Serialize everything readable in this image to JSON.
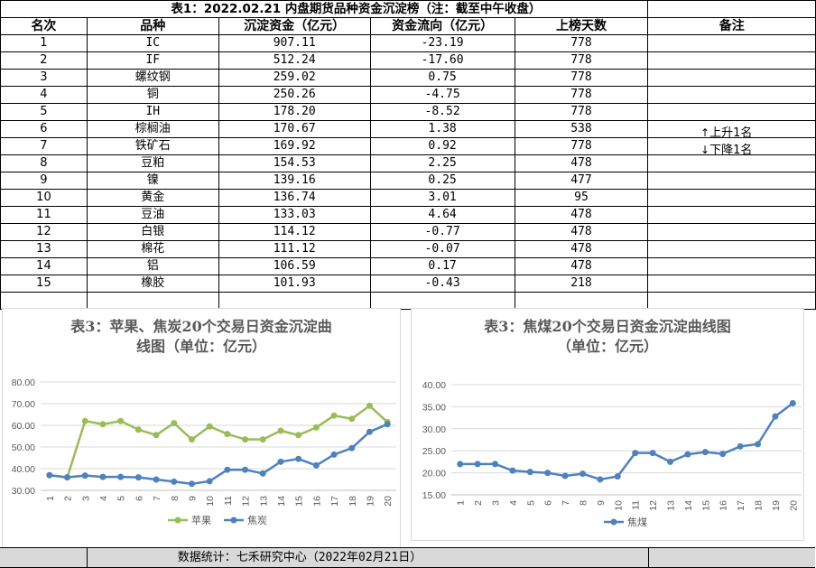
{
  "table": {
    "title": "表1：2022.02.21 内盘期货品种资金沉淀榜（注：截至中午收盘）",
    "headers": [
      "名次",
      "品种",
      "沉淀资金（亿元）",
      "资金流向（亿元）",
      "上榜天数",
      "备注"
    ],
    "rows": [
      [
        "1",
        "IC",
        "907.11",
        "-23.19",
        "778"
      ],
      [
        "2",
        "IF",
        "512.24",
        "-17.60",
        "778"
      ],
      [
        "3",
        "螺纹钢",
        "259.02",
        "0.75",
        "778"
      ],
      [
        "4",
        "铜",
        "250.26",
        "-4.75",
        "778"
      ],
      [
        "5",
        "IH",
        "178.20",
        "-8.52",
        "778"
      ],
      [
        "6",
        "棕榈油",
        "170.67",
        "1.38",
        "538"
      ],
      [
        "7",
        "铁矿石",
        "169.92",
        "0.92",
        "778"
      ],
      [
        "8",
        "豆粕",
        "154.53",
        "2.25",
        "478"
      ],
      [
        "9",
        "镍",
        "139.16",
        "0.25",
        "477"
      ],
      [
        "10",
        "黄金",
        "136.74",
        "3.01",
        "95"
      ],
      [
        "11",
        "豆油",
        "133.03",
        "4.64",
        "478"
      ],
      [
        "12",
        "白银",
        "114.12",
        "-0.77",
        "478"
      ],
      [
        "13",
        "棉花",
        "111.12",
        "-0.07",
        "478"
      ],
      [
        "14",
        "铝",
        "106.59",
        "0.17",
        "478"
      ],
      [
        "15",
        "橡胶",
        "101.93",
        "-0.43",
        "218"
      ]
    ],
    "notes": {
      "up": "上升1名",
      "down": "下降1名",
      "up_arrow": "↑",
      "down_arrow": "↓"
    },
    "footer": "数据统计：七禾研究中心（2022年02月21日）"
  },
  "chart_data": [
    {
      "type": "line",
      "title_line1": "表3：苹果、焦炭20个交易日资金沉淀曲",
      "title_line2": "线图（单位：亿元）",
      "categories": [
        "1",
        "2",
        "3",
        "4",
        "5",
        "6",
        "7",
        "8",
        "9",
        "10",
        "11",
        "12",
        "13",
        "14",
        "15",
        "16",
        "17",
        "18",
        "19",
        "20"
      ],
      "ylim": [
        30,
        80
      ],
      "yticks": [
        "30.00",
        "40.00",
        "50.00",
        "60.00",
        "70.00",
        "80.00"
      ],
      "grid": true,
      "legend": "bottom",
      "series": [
        {
          "name": "苹果",
          "color": "#9bbb59",
          "values": [
            37.0,
            36.0,
            62.0,
            60.5,
            62.0,
            58.0,
            55.5,
            61.0,
            53.5,
            59.5,
            56.0,
            53.5,
            53.5,
            57.5,
            55.5,
            59.0,
            64.5,
            63.0,
            69.0,
            61.5
          ]
        },
        {
          "name": "焦炭",
          "color": "#4f81bd",
          "values": [
            37.0,
            36.0,
            36.8,
            36.2,
            36.2,
            36.0,
            35.0,
            34.0,
            33.0,
            34.2,
            39.5,
            39.5,
            37.8,
            43.2,
            44.5,
            41.5,
            46.5,
            49.5,
            57.0,
            60.5
          ]
        }
      ]
    },
    {
      "type": "line",
      "title_line1": "表3：焦煤20个交易日资金沉淀曲线图",
      "title_line2": "（单位：亿元）",
      "categories": [
        "1",
        "2",
        "3",
        "4",
        "5",
        "6",
        "7",
        "8",
        "9",
        "10",
        "11",
        "12",
        "13",
        "14",
        "15",
        "16",
        "17",
        "18",
        "19",
        "20"
      ],
      "ylim": [
        15,
        40
      ],
      "yticks": [
        "15.00",
        "20.00",
        "25.00",
        "30.00",
        "35.00",
        "40.00"
      ],
      "grid": true,
      "legend": "bottom",
      "series": [
        {
          "name": "焦煤",
          "color": "#4f81bd",
          "values": [
            22.0,
            22.0,
            22.0,
            20.5,
            20.2,
            20.0,
            19.3,
            19.8,
            18.5,
            19.2,
            24.5,
            24.5,
            22.5,
            24.2,
            24.7,
            24.3,
            26.0,
            26.5,
            32.8,
            35.8
          ]
        }
      ]
    }
  ]
}
